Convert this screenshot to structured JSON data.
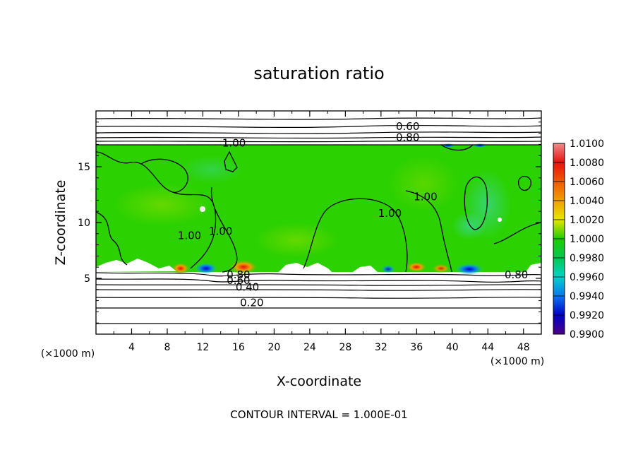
{
  "chart_data": {
    "type": "heatmap",
    "title": "saturation ratio",
    "xlabel": "X-coordinate",
    "ylabel": "Z-coordinate",
    "x_unit": "(×1000 m)",
    "z_unit": "(×1000 m)",
    "xlim": [
      0,
      50
    ],
    "ylim": [
      0,
      20
    ],
    "x_ticks": [
      4,
      8,
      12,
      16,
      20,
      24,
      28,
      32,
      36,
      40,
      44,
      48
    ],
    "y_ticks": [
      5,
      10,
      15
    ],
    "cloud_layer_z": [
      5.5,
      17.0
    ],
    "colorbar": {
      "labels": [
        "1.0100",
        "1.0080",
        "1.0060",
        "1.0040",
        "1.0020",
        "1.0000",
        "0.9980",
        "0.9960",
        "0.9940",
        "0.9920",
        "0.9900"
      ],
      "colors": [
        "#f08c8c",
        "#e81010",
        "#f05a00",
        "#f0a000",
        "#e8e800",
        "#22cc00",
        "#00c850",
        "#00d2c8",
        "#0a78f0",
        "#0000c8",
        "#4b0082"
      ]
    },
    "contour_labels": [
      {
        "text": "0.60",
        "x": 35.0,
        "z": 18.3
      },
      {
        "text": "0.80",
        "x": 35.0,
        "z": 17.3
      },
      {
        "text": "1.00",
        "x": 15.5,
        "z": 16.8
      },
      {
        "text": "1.00",
        "x": 10.5,
        "z": 8.5
      },
      {
        "text": "1.00",
        "x": 14.0,
        "z": 8.9
      },
      {
        "text": "1.00",
        "x": 33.0,
        "z": 10.5
      },
      {
        "text": "1.00",
        "x": 37.0,
        "z": 12.0
      },
      {
        "text": "0.80",
        "x": 16.0,
        "z": 5.0
      },
      {
        "text": "0.60",
        "x": 16.0,
        "z": 4.5
      },
      {
        "text": "0.40",
        "x": 17.0,
        "z": 3.9
      },
      {
        "text": "0.20",
        "x": 17.5,
        "z": 2.5
      },
      {
        "text": "0.80",
        "x": 47.2,
        "z": 5.0
      }
    ],
    "footer": "CONTOUR INTERVAL = 1.000E-01"
  }
}
